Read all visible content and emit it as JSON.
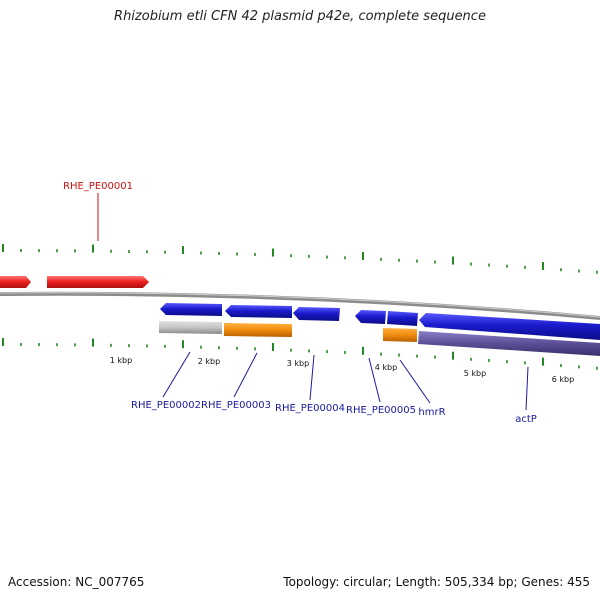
{
  "title": "Rhizobium etli CFN 42 plasmid p42e, complete sequence",
  "footer": {
    "accession": "Accession: NC_007765",
    "topology": "Topology: circular; Length: 505,334 bp; Genes: 455"
  },
  "colors": {
    "red_feature": "#ee2222",
    "blue_feature": "#1a1acc",
    "orange_feature": "#f08c10",
    "gray_feature": "#c4c4c4",
    "purple_feature": "#5a4f96",
    "backbone": "#8c8c8c",
    "tick": "#228822",
    "top_label": "#cc1111",
    "bottom_label": "#1a1aa0"
  },
  "labels": {
    "top": [
      "RHE_PE00001"
    ],
    "bottom": [
      "RHE_PE00002",
      "RHE_PE00003",
      "RHE_PE00004",
      "RHE_PE00005",
      "hmrR",
      "actP"
    ]
  },
  "kbp_labels": [
    "1 kbp",
    "2 kbp",
    "3 kbp",
    "4 kbp",
    "5 kbp",
    "6 kbp"
  ]
}
